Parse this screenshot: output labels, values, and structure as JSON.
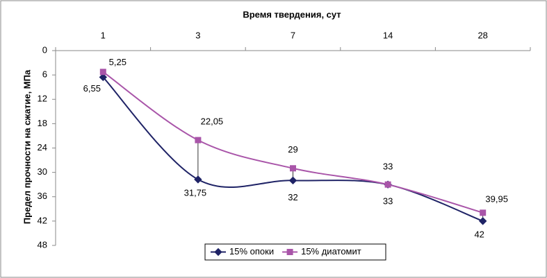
{
  "chart_data": {
    "type": "line",
    "title": "Время твердения, сут",
    "y_label": "Предел прочности на сжатие, МПа",
    "categories": [
      "1",
      "3",
      "7",
      "14",
      "28"
    ],
    "series": [
      {
        "name": "15% опоки",
        "color": "#1f2366",
        "marker": "diamond",
        "values": [
          6.55,
          31.75,
          32,
          33,
          42
        ],
        "value_labels": [
          "6,55",
          "31,75",
          "32",
          "33",
          "42"
        ]
      },
      {
        "name": "15% диатомит",
        "color": "#a955a9",
        "marker": "square",
        "values": [
          5.25,
          22.05,
          29,
          33,
          39.95
        ],
        "value_labels": [
          "5,25",
          "22,05",
          "29",
          "33",
          "39,95"
        ]
      }
    ],
    "ylim": [
      0,
      48
    ],
    "yticks": [
      0,
      6,
      12,
      18,
      24,
      30,
      36,
      42,
      48
    ],
    "y_inverted": true,
    "smooth": true,
    "high_low_lines": true,
    "legend": "bottom"
  }
}
